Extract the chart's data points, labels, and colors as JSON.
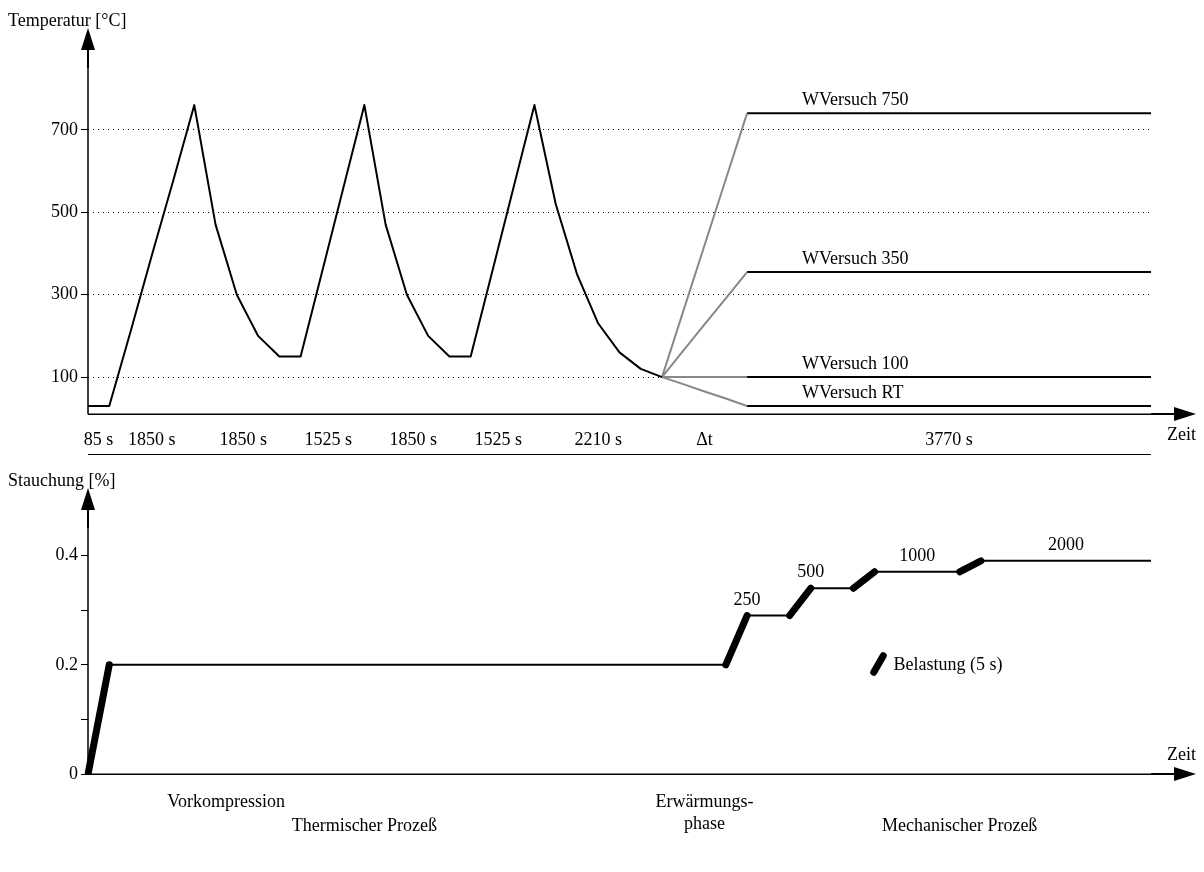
{
  "chart_data": [
    {
      "type": "line",
      "ylabel": "Temperatur [°C]",
      "xlabel": "Zeit",
      "marker": "none",
      "grid": "y",
      "ylim": [
        10,
        850
      ],
      "yticks": [
        100,
        300,
        500,
        700
      ],
      "categories": [
        null,
        null,
        null,
        null,
        null,
        null,
        null,
        null,
        null,
        null,
        null,
        null,
        null,
        null,
        null,
        null,
        null,
        null,
        null,
        null,
        null,
        null,
        null,
        null,
        null,
        null,
        null,
        null,
        null,
        null,
        null,
        null,
        null,
        null,
        null,
        null,
        null,
        null,
        null,
        null,
        null,
        null,
        null,
        null,
        null,
        null,
        null,
        null,
        null,
        null,
        null
      ],
      "series": [
        {
          "color": "#000000",
          "values": [
            30,
            30,
            210,
            395,
            575,
            760,
            470,
            300,
            200,
            150,
            150,
            353,
            557,
            760,
            470,
            300,
            200,
            150,
            150,
            353,
            557,
            760,
            520,
            350,
            230,
            160,
            120,
            100,
            null,
            null,
            null,
            null,
            null,
            null,
            null,
            null,
            null,
            null,
            null,
            null,
            null,
            null,
            null,
            null,
            null,
            null,
            null,
            null,
            null,
            null,
            null
          ]
        },
        {
          "color": "#888888",
          "values": [
            null,
            null,
            null,
            null,
            null,
            null,
            null,
            null,
            null,
            null,
            null,
            null,
            null,
            null,
            null,
            null,
            null,
            null,
            null,
            null,
            null,
            null,
            null,
            null,
            null,
            null,
            null,
            100,
            260,
            420,
            580,
            740,
            null,
            null,
            null,
            null,
            null,
            null,
            null,
            null,
            null,
            null,
            null,
            null,
            null,
            null,
            null,
            null,
            null,
            null,
            null
          ]
        },
        {
          "color": "#888888",
          "values": [
            null,
            null,
            null,
            null,
            null,
            null,
            null,
            null,
            null,
            null,
            null,
            null,
            null,
            null,
            null,
            null,
            null,
            null,
            null,
            null,
            null,
            null,
            null,
            null,
            null,
            null,
            null,
            100,
            164,
            228,
            291,
            355,
            null,
            null,
            null,
            null,
            null,
            null,
            null,
            null,
            null,
            null,
            null,
            null,
            null,
            null,
            null,
            null,
            null,
            null,
            null
          ]
        },
        {
          "color": "#888888",
          "values": [
            null,
            null,
            null,
            null,
            null,
            null,
            null,
            null,
            null,
            null,
            null,
            null,
            null,
            null,
            null,
            null,
            null,
            null,
            null,
            null,
            null,
            null,
            null,
            null,
            null,
            null,
            null,
            100,
            100,
            100,
            100,
            100,
            null,
            null,
            null,
            null,
            null,
            null,
            null,
            null,
            null,
            null,
            null,
            null,
            null,
            null,
            null,
            null,
            null,
            null,
            null
          ]
        },
        {
          "color": "#888888",
          "values": [
            null,
            null,
            null,
            null,
            null,
            null,
            null,
            null,
            null,
            null,
            null,
            null,
            null,
            null,
            null,
            null,
            null,
            null,
            null,
            null,
            null,
            null,
            null,
            null,
            null,
            null,
            null,
            100,
            83,
            65,
            48,
            30,
            null,
            null,
            null,
            null,
            null,
            null,
            null,
            null,
            null,
            null,
            null,
            null,
            null,
            null,
            null,
            null,
            null,
            null,
            null
          ]
        },
        {
          "name": "WVersuch 750",
          "color": "#000000",
          "values": [
            null,
            null,
            null,
            null,
            null,
            null,
            null,
            null,
            null,
            null,
            null,
            null,
            null,
            null,
            null,
            null,
            null,
            null,
            null,
            null,
            null,
            null,
            null,
            null,
            null,
            null,
            null,
            null,
            null,
            null,
            null,
            740,
            740,
            740,
            740,
            740,
            740,
            740,
            740,
            740,
            740,
            740,
            740,
            740,
            740,
            740,
            740,
            740,
            740,
            740,
            740
          ]
        },
        {
          "name": "WVersuch 350",
          "color": "#000000",
          "values": [
            null,
            null,
            null,
            null,
            null,
            null,
            null,
            null,
            null,
            null,
            null,
            null,
            null,
            null,
            null,
            null,
            null,
            null,
            null,
            null,
            null,
            null,
            null,
            null,
            null,
            null,
            null,
            null,
            null,
            null,
            null,
            355,
            355,
            355,
            355,
            355,
            355,
            355,
            355,
            355,
            355,
            355,
            355,
            355,
            355,
            355,
            355,
            355,
            355,
            355,
            355
          ]
        },
        {
          "name": "WVersuch 100",
          "color": "#000000",
          "values": [
            null,
            null,
            null,
            null,
            null,
            null,
            null,
            null,
            null,
            null,
            null,
            null,
            null,
            null,
            null,
            null,
            null,
            null,
            null,
            null,
            null,
            null,
            null,
            null,
            null,
            null,
            null,
            null,
            null,
            null,
            null,
            100,
            100,
            100,
            100,
            100,
            100,
            100,
            100,
            100,
            100,
            100,
            100,
            100,
            100,
            100,
            100,
            100,
            100,
            100,
            100
          ]
        },
        {
          "name": "WVersuch RT",
          "color": "#000000",
          "values": [
            null,
            null,
            null,
            null,
            null,
            null,
            null,
            null,
            null,
            null,
            null,
            null,
            null,
            null,
            null,
            null,
            null,
            null,
            null,
            null,
            null,
            null,
            null,
            null,
            null,
            null,
            null,
            null,
            null,
            null,
            null,
            30,
            30,
            30,
            30,
            30,
            30,
            30,
            30,
            30,
            30,
            30,
            30,
            30,
            30,
            30,
            30,
            30,
            30,
            30,
            30
          ]
        }
      ],
      "annotations": [
        "85 s",
        "1850 s",
        "1850 s",
        "1525 s",
        "1850 s",
        "1525 s",
        "2210 s",
        "Δt",
        "3770 s"
      ]
    },
    {
      "type": "line",
      "ylabel": "Stauchung [%]",
      "xlabel": "Zeit",
      "marker": "none",
      "grid": false,
      "legend": "right",
      "ylim": [
        0,
        0.45
      ],
      "yticks": [
        0,
        {
          "value": 0.1,
          "label": null
        },
        0.2,
        {
          "value": 0.3,
          "label": null
        },
        0.4
      ],
      "categories": [
        null,
        null,
        null,
        null,
        null,
        null,
        null,
        null,
        null,
        null,
        null,
        null,
        null,
        null,
        null,
        null,
        null,
        null,
        null,
        null,
        null,
        null,
        null,
        null,
        null,
        null,
        null,
        null,
        null,
        null,
        null,
        null,
        null,
        null,
        null,
        null,
        null,
        null,
        null,
        null,
        null,
        null,
        null,
        null,
        null,
        null,
        null,
        null,
        null,
        null,
        null
      ],
      "series": [
        {
          "color": "#000000",
          "values": [
            0,
            0.2,
            0.2,
            0.2,
            0.2,
            0.2,
            0.2,
            0.2,
            0.2,
            0.2,
            0.2,
            0.2,
            0.2,
            0.2,
            0.2,
            0.2,
            0.2,
            0.2,
            0.2,
            0.2,
            0.2,
            0.2,
            0.2,
            0.2,
            0.2,
            0.2,
            0.2,
            0.2,
            0.2,
            0.2,
            0.2,
            0.29,
            0.29,
            0.29,
            0.34,
            0.34,
            0.34,
            0.37,
            0.37,
            0.37,
            0.37,
            0.37,
            0.39,
            0.39,
            0.39,
            0.39,
            0.39,
            0.39,
            0.39,
            0.39,
            0.39
          ]
        },
        {
          "name": "Belastung (5 s)",
          "color": "#000000",
          "values": [
            0,
            0.2,
            null,
            null,
            null,
            null,
            null,
            null,
            null,
            null,
            null,
            null,
            null,
            null,
            null,
            null,
            null,
            null,
            null,
            null,
            null,
            null,
            null,
            null,
            null,
            null,
            null,
            null,
            null,
            null,
            0.2,
            0.29,
            null,
            0.29,
            0.34,
            null,
            0.34,
            0.37,
            null,
            null,
            null,
            0.37,
            0.39,
            null,
            null,
            null,
            null,
            null,
            null,
            null,
            null
          ]
        }
      ],
      "annotations": [
        "Vorkompression",
        "Erwärmungs-\nphase",
        "Thermischer Prozeß",
        "Mechanischer Prozeß",
        {
          "text": "250",
          "y": 0.29
        },
        {
          "text": "500",
          "y": 0.34
        },
        {
          "text": "1000",
          "y": 0.37
        },
        {
          "text": "2000",
          "y": 0.39
        }
      ]
    }
  ]
}
